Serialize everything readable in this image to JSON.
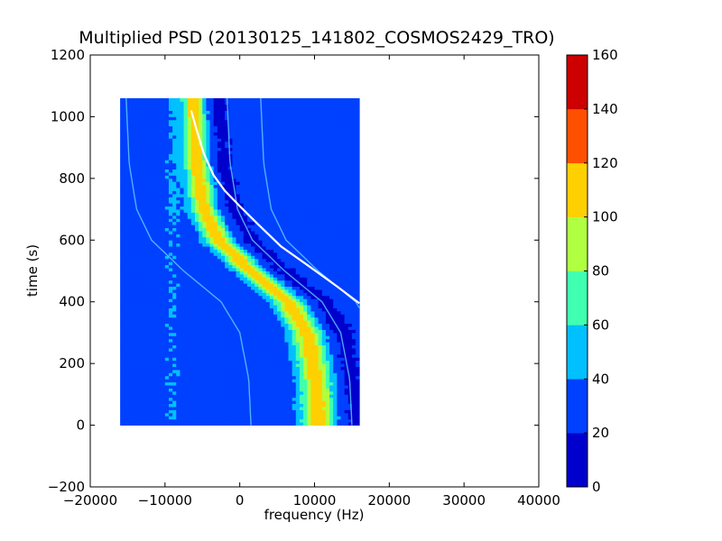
{
  "chart_data": {
    "type": "heatmap",
    "title": "Multiplied PSD (20130125_141802_COSMOS2429_TRO)",
    "xlabel": "frequency (Hz)",
    "ylabel": "time (s)",
    "xlim": [
      -20000,
      40000
    ],
    "ylim": [
      -200,
      1200
    ],
    "x_ticks": [
      -20000,
      -10000,
      0,
      10000,
      20000,
      30000,
      40000
    ],
    "x_tick_labels": [
      "−20000",
      "−10000",
      "0",
      "10000",
      "20000",
      "30000",
      "40000"
    ],
    "y_ticks": [
      -200,
      0,
      200,
      400,
      600,
      800,
      1000,
      1200
    ],
    "y_tick_labels": [
      "−200",
      "0",
      "200",
      "400",
      "600",
      "800",
      "1000",
      "1200"
    ],
    "data_extent": {
      "x": [
        -16000,
        16000
      ],
      "y": [
        0,
        1060
      ]
    },
    "background_level": 30,
    "main_track": {
      "description_points_time": [
        0,
        150,
        300,
        400,
        500,
        600,
        700,
        850,
        1060
      ],
      "center_frequency": [
        10500,
        10200,
        9000,
        6500,
        1500,
        -2800,
        -4800,
        -5800,
        -6200
      ],
      "half_width": [
        2000,
        1900,
        1850,
        1800,
        1700,
        1650,
        1550,
        1400,
        1300
      ],
      "peak_level": 85
    },
    "fit_curve": {
      "color": "#ffffff",
      "x": [
        -6500,
        -5800,
        -4800,
        -3500,
        -2000,
        0,
        2500,
        5500,
        9000,
        13000,
        16000
      ],
      "y": [
        1020,
        960,
        880,
        810,
        760,
        710,
        650,
        580,
        520,
        450,
        395
      ]
    },
    "colorbar": {
      "min": 0,
      "max": 160,
      "tick_values": [
        0,
        20,
        40,
        60,
        80,
        100,
        120,
        140,
        160
      ],
      "tick_labels": [
        "0",
        "20",
        "40",
        "60",
        "80",
        "100",
        "120",
        "140",
        "160"
      ],
      "colors": [
        "#0000cd",
        "#0040ff",
        "#00c0ff",
        "#40ffb0",
        "#b0ff40",
        "#ffd000",
        "#ff5000",
        "#cc0000"
      ]
    }
  }
}
